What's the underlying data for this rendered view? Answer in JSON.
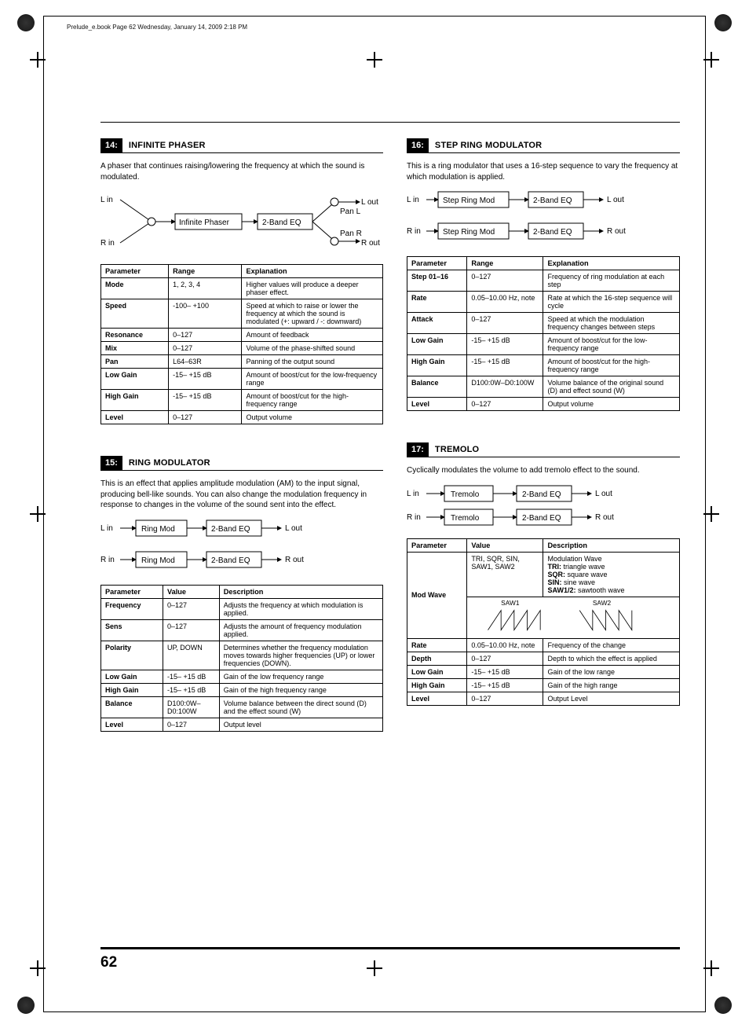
{
  "header_line": "Prelude_e.book  Page 62  Wednesday, January 14, 2009  2:18 PM",
  "page_number": "62",
  "s14": {
    "num": "14:",
    "name": "INFINITE PHASER",
    "desc": "A phaser that continues raising/lowering the frequency at which the sound is modulated.",
    "dia": {
      "l_in": "L in",
      "r_in": "R in",
      "l_out": "L out",
      "r_out": "R out",
      "box1": "Infinite Phaser",
      "box2": "2-Band EQ",
      "pan_l": "Pan L",
      "pan_r": "Pan R"
    },
    "cols": [
      "Parameter",
      "Range",
      "Explanation"
    ],
    "rows": [
      [
        "Mode",
        "1, 2, 3, 4",
        "Higher values will produce a deeper phaser effect."
      ],
      [
        "Speed",
        "-100– +100",
        "Speed at which to raise or lower the frequency at which the sound is modulated\n(+: upward / -: downward)"
      ],
      [
        "Resonance",
        "0–127",
        "Amount of feedback"
      ],
      [
        "Mix",
        "0–127",
        "Volume of the phase-shifted sound"
      ],
      [
        "Pan",
        "L64–63R",
        "Panning of the output sound"
      ],
      [
        "Low Gain",
        "-15– +15 dB",
        "Amount of boost/cut for the low-frequency range"
      ],
      [
        "High Gain",
        "-15– +15 dB",
        "Amount of boost/cut for the high-frequency range"
      ],
      [
        "Level",
        "0–127",
        "Output volume"
      ]
    ]
  },
  "s15": {
    "num": "15:",
    "name": "RING MODULATOR",
    "desc": "This is an effect that applies amplitude modulation (AM) to the input signal, producing bell-like sounds. You can also change the modulation frequency in response to changes in the volume of the sound sent into the effect.",
    "dia": {
      "l_in": "L in",
      "r_in": "R in",
      "l_out": "L out",
      "r_out": "R out",
      "box1": "Ring Mod",
      "box2": "2-Band EQ"
    },
    "cols": [
      "Parameter",
      "Value",
      "Description"
    ],
    "rows": [
      [
        "Frequency",
        "0–127",
        "Adjusts the frequency at which modulation is applied."
      ],
      [
        "Sens",
        "0–127",
        "Adjusts the amount of frequency modulation applied."
      ],
      [
        "Polarity",
        "UP, DOWN",
        "Determines whether the frequency modulation moves towards higher frequencies (UP) or lower frequencies (DOWN)."
      ],
      [
        "Low Gain",
        "-15– +15 dB",
        "Gain of the low frequency range"
      ],
      [
        "High Gain",
        "-15– +15 dB",
        "Gain of the high frequency range"
      ],
      [
        "Balance",
        "D100:0W– D0:100W",
        "Volume balance between the direct sound (D) and the effect sound (W)"
      ],
      [
        "Level",
        "0–127",
        "Output level"
      ]
    ]
  },
  "s16": {
    "num": "16:",
    "name": "STEP RING MODULATOR",
    "desc": "This is a ring modulator that uses a 16-step sequence to vary the frequency at which modulation is applied.",
    "dia": {
      "l_in": "L in",
      "r_in": "R in",
      "l_out": "L out",
      "r_out": "R out",
      "box1": "Step Ring Mod",
      "box2": "2-Band EQ"
    },
    "cols": [
      "Parameter",
      "Range",
      "Explanation"
    ],
    "rows": [
      [
        "Step 01–16",
        "0–127",
        "Frequency of ring modulation at each step"
      ],
      [
        "Rate",
        "0.05–10.00 Hz, note",
        "Rate at which the 16-step sequence will cycle"
      ],
      [
        "Attack",
        "0–127",
        "Speed at which the modulation frequency changes between steps"
      ],
      [
        "Low Gain",
        "-15– +15 dB",
        "Amount of boost/cut for the low-frequency range"
      ],
      [
        "High Gain",
        "-15– +15 dB",
        "Amount of boost/cut for the high-frequency range"
      ],
      [
        "Balance",
        "D100:0W–D0:100W",
        "Volume balance of the original sound (D) and effect sound (W)"
      ],
      [
        "Level",
        "0–127",
        "Output volume"
      ]
    ]
  },
  "s17": {
    "num": "17:",
    "name": "TREMOLO",
    "desc": "Cyclically modulates the volume to add tremolo effect to the sound.",
    "dia": {
      "l_in": "L in",
      "r_in": "R in",
      "l_out": "L out",
      "r_out": "R out",
      "box1": "Tremolo",
      "box2": "2-Band EQ"
    },
    "cols": [
      "Parameter",
      "Value",
      "Description"
    ],
    "modwave_label": "Mod Wave",
    "modwave_value": "TRI, SQR, SIN, SAW1, SAW2",
    "modwave_desc_title": "Modulation Wave",
    "modwave_desc_lines": [
      "TRI: triangle wave",
      "SQR: square wave",
      "SIN: sine wave",
      "SAW1/2: sawtooth wave"
    ],
    "saw1_label": "SAW1",
    "saw2_label": "SAW2",
    "rows": [
      [
        "Rate",
        "0.05–10.00 Hz, note",
        "Frequency of the change"
      ],
      [
        "Depth",
        "0–127",
        "Depth to which the effect is applied"
      ],
      [
        "Low Gain",
        "-15– +15 dB",
        "Gain of the low range"
      ],
      [
        "High Gain",
        "-15– +15 dB",
        "Gain of the high range"
      ],
      [
        "Level",
        "0–127",
        "Output Level"
      ]
    ]
  }
}
